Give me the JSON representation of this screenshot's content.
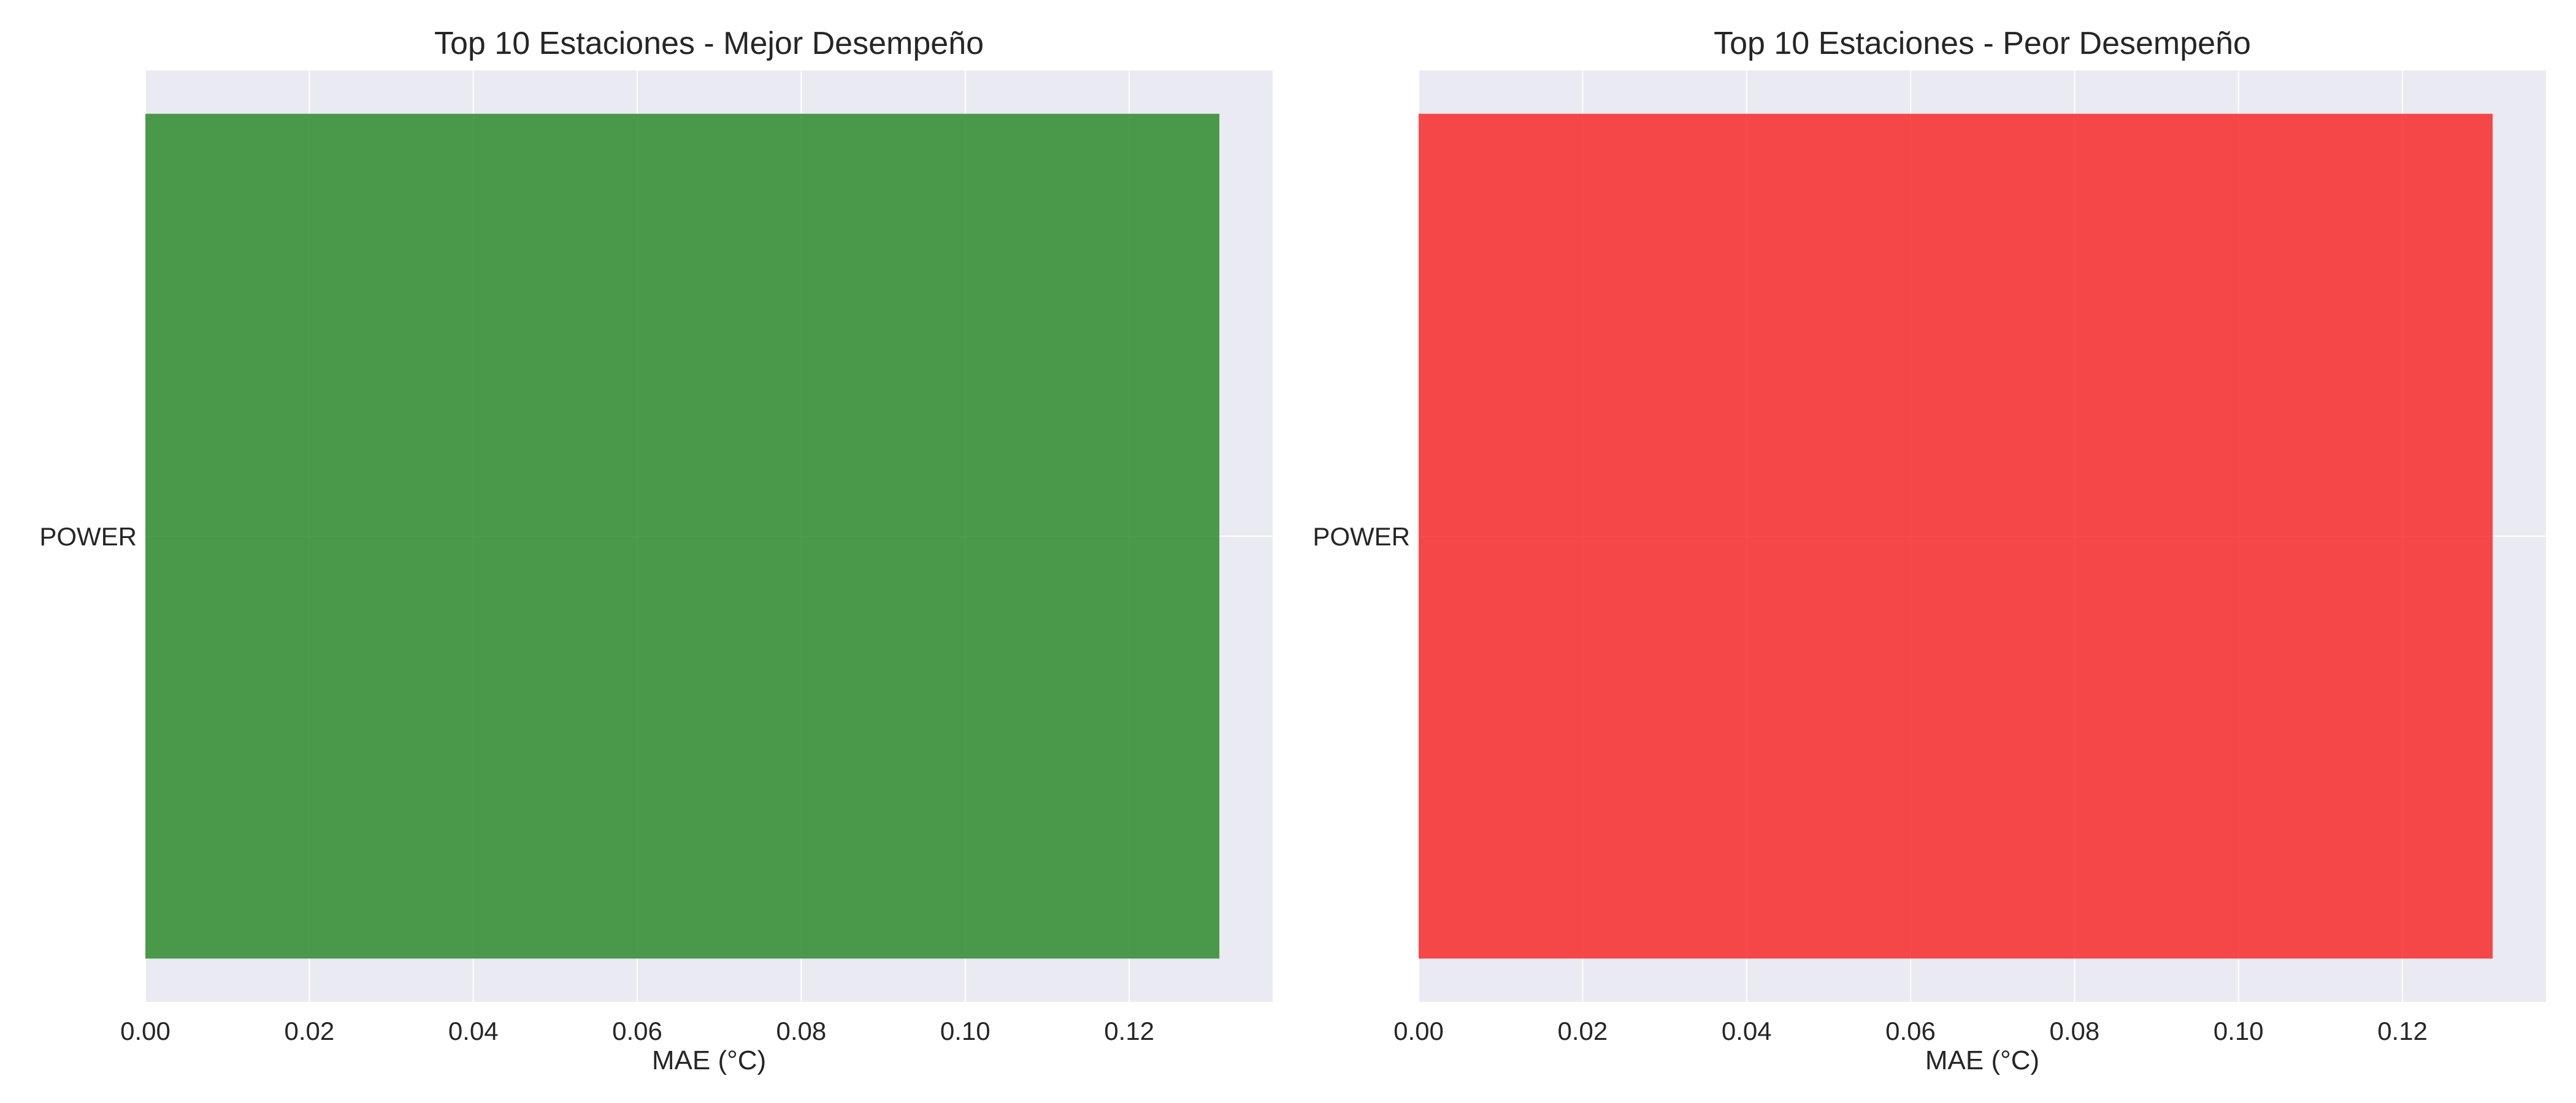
{
  "chart_data": [
    {
      "type": "bar",
      "orientation": "horizontal",
      "title": "Top 10 Estaciones - Mejor Desempeño",
      "xlabel": "MAE (°C)",
      "ylabel": "",
      "categories": [
        "POWER"
      ],
      "values": [
        0.131
      ],
      "xlim": [
        0,
        0.1375
      ],
      "xticks": [
        0.0,
        0.02,
        0.04,
        0.06,
        0.08,
        0.1,
        0.12
      ],
      "xtick_labels": [
        "0.00",
        "0.02",
        "0.04",
        "0.06",
        "0.08",
        "0.10",
        "0.12"
      ],
      "bar_color": "#2e8b2e",
      "grid": true,
      "background": "#eaeaf2"
    },
    {
      "type": "bar",
      "orientation": "horizontal",
      "title": "Top 10 Estaciones - Peor Desempeño",
      "xlabel": "MAE (°C)",
      "ylabel": "",
      "categories": [
        "POWER"
      ],
      "values": [
        0.131
      ],
      "xlim": [
        0,
        0.1375
      ],
      "xticks": [
        0.0,
        0.02,
        0.04,
        0.06,
        0.08,
        0.1,
        0.12
      ],
      "xtick_labels": [
        "0.00",
        "0.02",
        "0.04",
        "0.06",
        "0.08",
        "0.10",
        "0.12"
      ],
      "bar_color": "#f82a2a",
      "grid": true,
      "background": "#eaeaf2"
    }
  ]
}
